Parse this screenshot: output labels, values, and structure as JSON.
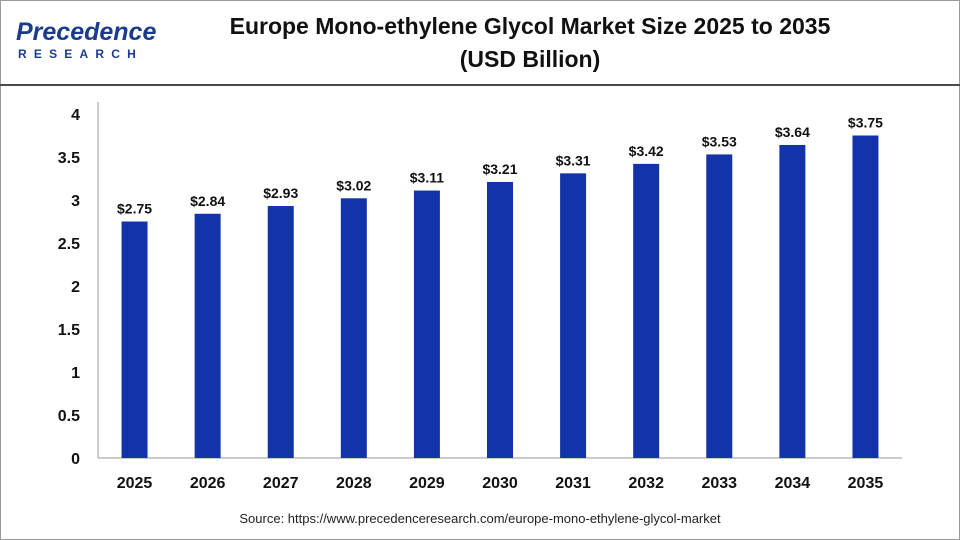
{
  "header": {
    "logo_word": "Precedence",
    "logo_sub": "RESEARCH",
    "title_line1": "Europe Mono-ethylene Glycol Market Size 2025 to 2035",
    "title_line2": "(USD Billion)"
  },
  "footer": {
    "source": "Source: https://www.precedenceresearch.com/europe-mono-ethylene-glycol-market"
  },
  "colors": {
    "bar": "#1234a8",
    "axis": "#999999",
    "brand": "#1b3c8c"
  },
  "chart_data": {
    "type": "bar",
    "title": "Europe Mono-ethylene Glycol Market Size 2025 to 2035 (USD Billion)",
    "categories": [
      "2025",
      "2026",
      "2027",
      "2028",
      "2029",
      "2030",
      "2031",
      "2032",
      "2033",
      "2034",
      "2035"
    ],
    "values": [
      2.75,
      2.84,
      2.93,
      3.02,
      3.11,
      3.21,
      3.31,
      3.42,
      3.53,
      3.64,
      3.75
    ],
    "data_labels": [
      "$2.75",
      "$2.84",
      "$2.93",
      "$3.02",
      "$3.11",
      "$3.21",
      "$3.31",
      "$3.42",
      "$3.53",
      "$3.64",
      "$3.75"
    ],
    "ylim": [
      0,
      4
    ],
    "yticks": [
      "0",
      "0.5",
      "1",
      "1.5",
      "2",
      "2.5",
      "3",
      "3.5",
      "4"
    ],
    "grid": false,
    "legend": "none"
  }
}
